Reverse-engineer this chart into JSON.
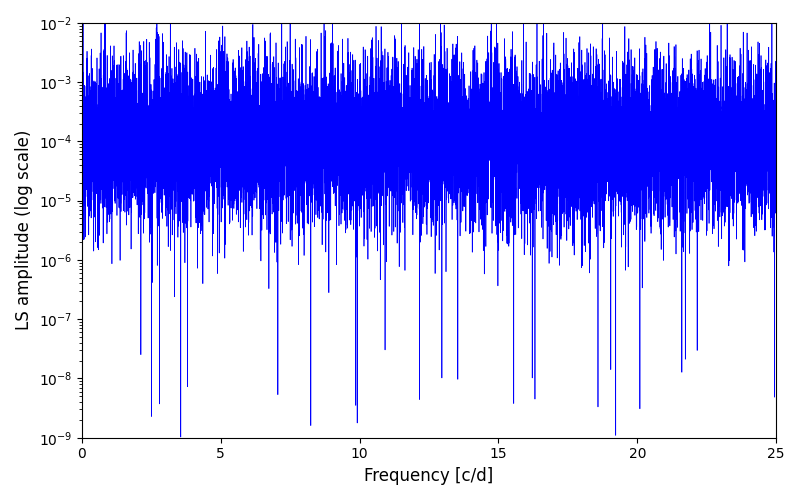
{
  "xlabel": "Frequency [c/d]",
  "ylabel": "LS amplitude (log scale)",
  "xlim": [
    0,
    25
  ],
  "ylim": [
    1e-09,
    0.01
  ],
  "line_color": "#0000FF",
  "line_width": 0.5,
  "figsize": [
    8.0,
    5.0
  ],
  "dpi": 100,
  "yscale": "log",
  "seed": 12345,
  "n_points": 12000,
  "freq_max": 25.0,
  "base_log": -4.0,
  "noise_std": 0.7,
  "spike_prob": 0.003,
  "spike_log_max": -2.0,
  "spike_log_min": -2.5,
  "deep_dip_prob": 0.002,
  "deep_dip_log_min": -9.0,
  "deep_dip_log_max": -7.5,
  "clip_min": 1e-09,
  "clip_max": 0.012
}
